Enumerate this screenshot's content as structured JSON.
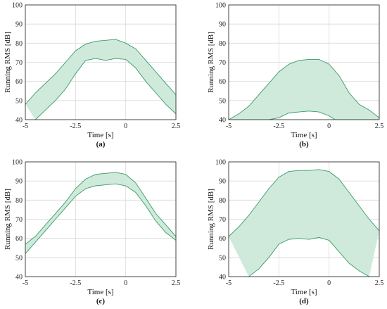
{
  "colors": {
    "fill": "#cfeadb",
    "edge": "#3a9a6a"
  },
  "chart_data": [
    {
      "type": "area",
      "caption": "(a)",
      "xlabel": "Time [s]",
      "ylabel": "Running RMS [dB]",
      "xlim": [
        -5,
        2.5
      ],
      "ylim": [
        40,
        100
      ],
      "xticks": [
        -5,
        -2.5,
        0,
        2.5
      ],
      "xticklabels": [
        "-5",
        "-2.5",
        "0",
        "2.5"
      ],
      "yticks": [
        40,
        50,
        60,
        70,
        80,
        90,
        100
      ],
      "grid": true,
      "series": [
        {
          "role": "upper",
          "x": [
            -5,
            -4.5,
            -4,
            -3.5,
            -3,
            -2.5,
            -2,
            -1.5,
            -1,
            -0.5,
            0,
            0.5,
            1,
            1.5,
            2,
            2.5
          ],
          "values": [
            48,
            54,
            59,
            64,
            70,
            76,
            79.5,
            81,
            81.5,
            82,
            80,
            77,
            71,
            65,
            59,
            53
          ]
        },
        {
          "role": "lower",
          "x": [
            -4.5,
            -4,
            -3.5,
            -3,
            -2.5,
            -2,
            -1.5,
            -1,
            -0.5,
            0,
            0.5,
            1,
            1.5,
            2,
            2.5
          ],
          "values": [
            40,
            45,
            50,
            56,
            64,
            71,
            72,
            71,
            72,
            71.5,
            67,
            60,
            54,
            48,
            43
          ]
        }
      ]
    },
    {
      "type": "area",
      "caption": "(b)",
      "xlabel": "Time [s]",
      "ylabel": "Running RMS [dB]",
      "xlim": [
        -5,
        2.5
      ],
      "ylim": [
        40,
        100
      ],
      "xticks": [
        -5,
        -2.5,
        0,
        2.5
      ],
      "xticklabels": [
        "-5",
        "-2.5",
        "0",
        "2.5"
      ],
      "yticks": [
        40,
        50,
        60,
        70,
        80,
        90,
        100
      ],
      "grid": true,
      "series": [
        {
          "role": "upper",
          "x": [
            -5,
            -4.5,
            -4,
            -3.5,
            -3,
            -2.5,
            -2,
            -1.5,
            -1,
            -0.5,
            0,
            0.5,
            1,
            1.5,
            2,
            2.5
          ],
          "values": [
            40,
            43,
            47,
            53,
            59,
            65,
            69,
            71,
            71.5,
            71.5,
            69,
            63,
            54,
            48,
            45,
            41
          ]
        },
        {
          "role": "lower",
          "x": [
            -5,
            -3,
            -2.5,
            -2,
            -1.5,
            -1,
            -0.5,
            0,
            0.3,
            2.5
          ],
          "values": [
            40,
            40,
            41,
            43.5,
            44,
            44.5,
            44,
            42,
            40,
            40
          ]
        }
      ]
    },
    {
      "type": "area",
      "caption": "(c)",
      "xlabel": "Time [s]",
      "ylabel": "Running RMS [dB]",
      "xlim": [
        -5,
        2.5
      ],
      "ylim": [
        40,
        100
      ],
      "xticks": [
        -5,
        -2.5,
        0,
        2.5
      ],
      "xticklabels": [
        "-5",
        "-2.5",
        "0",
        "2.5"
      ],
      "yticks": [
        40,
        50,
        60,
        70,
        80,
        90,
        100
      ],
      "grid": true,
      "series": [
        {
          "role": "upper",
          "x": [
            -5,
            -4.5,
            -4,
            -3.5,
            -3,
            -2.5,
            -2,
            -1.5,
            -1,
            -0.5,
            0,
            0.5,
            1,
            1.5,
            2,
            2.5
          ],
          "values": [
            57,
            61,
            67,
            73,
            79,
            86,
            91,
            93.5,
            94,
            94.5,
            93.5,
            89,
            81,
            73,
            67,
            61
          ]
        },
        {
          "role": "lower",
          "x": [
            -5,
            -4.5,
            -4,
            -3.5,
            -3,
            -2.5,
            -2,
            -1.5,
            -1,
            -0.5,
            0,
            0.5,
            1,
            1.5,
            2,
            2.5
          ],
          "values": [
            52,
            58,
            64,
            70,
            76,
            82,
            86,
            87.5,
            88,
            88.5,
            87.5,
            84,
            77,
            69,
            63,
            59
          ]
        }
      ]
    },
    {
      "type": "area",
      "caption": "(d)",
      "xlabel": "Time [s]",
      "ylabel": "Running RMS [dB]",
      "xlim": [
        -5,
        2.5
      ],
      "ylim": [
        40,
        100
      ],
      "xticks": [
        -5,
        -2.5,
        0,
        2.5
      ],
      "xticklabels": [
        "-5",
        "-2.5",
        "0",
        "2.5"
      ],
      "yticks": [
        40,
        50,
        60,
        70,
        80,
        90,
        100
      ],
      "grid": true,
      "series": [
        {
          "role": "upper",
          "x": [
            -5,
            -4.5,
            -4,
            -3.5,
            -3,
            -2.5,
            -2,
            -1.5,
            -1,
            -0.5,
            0,
            0.5,
            1,
            1.5,
            2,
            2.5
          ],
          "values": [
            61,
            66,
            72,
            79,
            86,
            92,
            95,
            95.5,
            95.5,
            96,
            95,
            91,
            84,
            77,
            70,
            64
          ]
        },
        {
          "role": "lower",
          "x": [
            -4,
            -3.5,
            -3,
            -2.5,
            -2,
            -1.5,
            -1,
            -0.5,
            0,
            0.5,
            1,
            1.5,
            2
          ],
          "values": [
            40,
            44,
            50,
            57,
            59.5,
            60,
            59.5,
            60.5,
            59,
            53,
            47,
            43,
            40
          ]
        }
      ]
    }
  ]
}
